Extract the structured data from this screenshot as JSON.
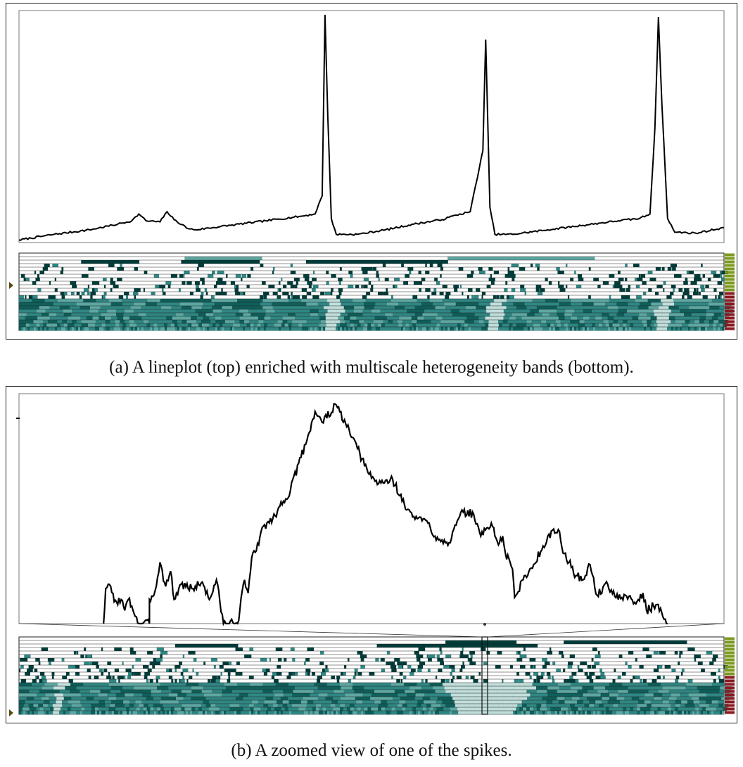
{
  "captions": {
    "a": "(a) A lineplot (top) enriched with multiscale heterogeneity bands (bottom).",
    "b": "(b) A zoomed view of one of the spikes."
  },
  "colors": {
    "line": "#000000",
    "band_dark": "#003d3a",
    "band_mid": "#0f5e5a",
    "band_teal": "#2f8683",
    "band_light": "#5ea7a2",
    "band_pale": "#a9d1cd",
    "band_rule": "#222222",
    "scale_green": "#7d9a1e",
    "scale_red": "#8a1a22",
    "marker": "#5a4a12"
  },
  "chart_data": [
    {
      "type": "line",
      "title": "",
      "xlabel": "",
      "ylabel": "",
      "xlim": [
        0,
        100
      ],
      "ylim": [
        0,
        100
      ],
      "grid": false,
      "points": [
        [
          0,
          0.5
        ],
        [
          5,
          3
        ],
        [
          10,
          5
        ],
        [
          14,
          7.5
        ],
        [
          16,
          9
        ],
        [
          17,
          12
        ],
        [
          18,
          9
        ],
        [
          20,
          8.5
        ],
        [
          21,
          13
        ],
        [
          22,
          9.5
        ],
        [
          24,
          5.5
        ],
        [
          25,
          5
        ],
        [
          30,
          7
        ],
        [
          35,
          9
        ],
        [
          40,
          11
        ],
        [
          42,
          12
        ],
        [
          43,
          20
        ],
        [
          43.4,
          100
        ],
        [
          43.8,
          55
        ],
        [
          44.3,
          10
        ],
        [
          45,
          3
        ],
        [
          48,
          3
        ],
        [
          52,
          5
        ],
        [
          56,
          7.5
        ],
        [
          60,
          9.5
        ],
        [
          62,
          11.5
        ],
        [
          64,
          13
        ],
        [
          65.8,
          40
        ],
        [
          66.2,
          89
        ],
        [
          66.8,
          15
        ],
        [
          67.5,
          3
        ],
        [
          70,
          3
        ],
        [
          75,
          5
        ],
        [
          80,
          7
        ],
        [
          85,
          9
        ],
        [
          88,
          10
        ],
        [
          89.5,
          12
        ],
        [
          90.2,
          50
        ],
        [
          90.7,
          99
        ],
        [
          91.2,
          60
        ],
        [
          92,
          10
        ],
        [
          93,
          4
        ],
        [
          96,
          3.5
        ],
        [
          100,
          6
        ]
      ],
      "series": [
        {
          "values_ref": "points"
        }
      ]
    },
    {
      "type": "line",
      "title": "",
      "xlabel": "",
      "ylabel": "",
      "xlim": [
        0,
        100
      ],
      "ylim": [
        0,
        100
      ],
      "grid": false,
      "points": [
        [
          12,
          0
        ],
        [
          12.3,
          16
        ],
        [
          13,
          17
        ],
        [
          13.5,
          10
        ],
        [
          14.5,
          11
        ],
        [
          15,
          6
        ],
        [
          15.5,
          11
        ],
        [
          16,
          8
        ],
        [
          17,
          0
        ],
        [
          18.5,
          0
        ],
        [
          18.5,
          11
        ],
        [
          19.3,
          15
        ],
        [
          20,
          28
        ],
        [
          20.8,
          17
        ],
        [
          21.5,
          24
        ],
        [
          22,
          11
        ],
        [
          23,
          18
        ],
        [
          24.5,
          16
        ],
        [
          26,
          19
        ],
        [
          27,
          11
        ],
        [
          28,
          20
        ],
        [
          29,
          0
        ],
        [
          31,
          0
        ],
        [
          32,
          20
        ],
        [
          32.5,
          14
        ],
        [
          33,
          30
        ],
        [
          34,
          36
        ],
        [
          34.5,
          44
        ],
        [
          36,
          48
        ],
        [
          37.5,
          56
        ],
        [
          38.5,
          61
        ],
        [
          40,
          76
        ],
        [
          41,
          86
        ],
        [
          42,
          97
        ],
        [
          43,
          92
        ],
        [
          45,
          100
        ],
        [
          46.5,
          90
        ],
        [
          48,
          80
        ],
        [
          49.5,
          69
        ],
        [
          51,
          64
        ],
        [
          53,
          66
        ],
        [
          55,
          52
        ],
        [
          56,
          49
        ],
        [
          58,
          46
        ],
        [
          59,
          40
        ],
        [
          61,
          37
        ],
        [
          62,
          45
        ],
        [
          63,
          51
        ],
        [
          64.5,
          50
        ],
        [
          65.5,
          40
        ],
        [
          67,
          46
        ],
        [
          68,
          36
        ],
        [
          68.6,
          40
        ],
        [
          69,
          32
        ],
        [
          70,
          25
        ],
        [
          70.3,
          12
        ],
        [
          71.5,
          20
        ],
        [
          73,
          27
        ],
        [
          74,
          33
        ],
        [
          75,
          40
        ],
        [
          76.5,
          43
        ],
        [
          77,
          35
        ],
        [
          78,
          28
        ],
        [
          79,
          22
        ],
        [
          80,
          20
        ],
        [
          81,
          27
        ],
        [
          82,
          13
        ],
        [
          83.5,
          18
        ],
        [
          85,
          11
        ],
        [
          86,
          13
        ],
        [
          87.5,
          9
        ],
        [
          88.5,
          14
        ],
        [
          89,
          6
        ],
        [
          90,
          8
        ],
        [
          91,
          7
        ],
        [
          91.5,
          2
        ],
        [
          92,
          0
        ]
      ],
      "series": [
        {
          "values_ref": "points"
        }
      ]
    }
  ]
}
